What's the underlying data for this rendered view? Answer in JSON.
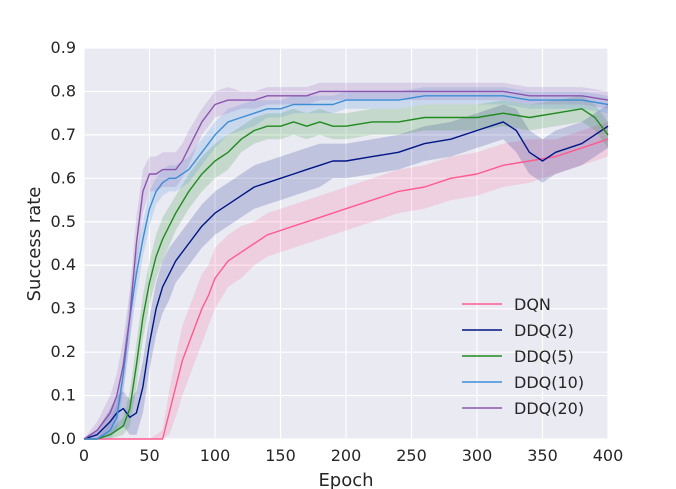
{
  "chart_data": {
    "type": "line",
    "xlabel": "Epoch",
    "ylabel": "Success rate",
    "xlim": [
      0,
      400
    ],
    "ylim": [
      0.0,
      0.9
    ],
    "x_ticks": [
      "0",
      "50",
      "100",
      "150",
      "200",
      "250",
      "300",
      "350",
      "400"
    ],
    "y_ticks": [
      "0.0",
      "0.1",
      "0.2",
      "0.3",
      "0.4",
      "0.5",
      "0.6",
      "0.7",
      "0.8",
      "0.9"
    ],
    "grid": true,
    "background": "#eaeaf2",
    "legend_position": "lower-right",
    "series": [
      {
        "name": "DQN",
        "color": "#ff5a8f",
        "x": [
          0,
          10,
          20,
          30,
          40,
          50,
          55,
          60,
          65,
          70,
          75,
          80,
          85,
          90,
          95,
          100,
          110,
          120,
          130,
          140,
          150,
          160,
          170,
          180,
          190,
          200,
          220,
          240,
          260,
          280,
          300,
          320,
          340,
          360,
          380,
          400
        ],
        "y": [
          0.0,
          0.0,
          0.0,
          0.0,
          0.0,
          0.0,
          0.0,
          0.0,
          0.06,
          0.12,
          0.18,
          0.22,
          0.26,
          0.3,
          0.33,
          0.37,
          0.41,
          0.43,
          0.45,
          0.47,
          0.48,
          0.49,
          0.5,
          0.51,
          0.52,
          0.53,
          0.55,
          0.57,
          0.58,
          0.6,
          0.61,
          0.63,
          0.64,
          0.65,
          0.67,
          0.69
        ],
        "band": [
          0,
          0,
          0,
          0,
          0,
          0,
          0.01,
          0.02,
          0.05,
          0.07,
          0.08,
          0.08,
          0.08,
          0.08,
          0.07,
          0.07,
          0.06,
          0.06,
          0.05,
          0.05,
          0.05,
          0.05,
          0.05,
          0.05,
          0.05,
          0.05,
          0.05,
          0.05,
          0.05,
          0.05,
          0.05,
          0.05,
          0.05,
          0.04,
          0.04,
          0.04
        ]
      },
      {
        "name": "DDQ(2)",
        "color": "#001586",
        "x": [
          0,
          10,
          20,
          25,
          30,
          35,
          40,
          45,
          50,
          55,
          60,
          65,
          70,
          80,
          90,
          100,
          110,
          120,
          130,
          140,
          150,
          160,
          170,
          180,
          190,
          200,
          220,
          240,
          260,
          280,
          300,
          320,
          330,
          340,
          350,
          360,
          380,
          400
        ],
        "y": [
          0.0,
          0.01,
          0.04,
          0.06,
          0.07,
          0.05,
          0.06,
          0.12,
          0.22,
          0.3,
          0.35,
          0.38,
          0.41,
          0.45,
          0.49,
          0.52,
          0.54,
          0.56,
          0.58,
          0.59,
          0.6,
          0.61,
          0.62,
          0.63,
          0.64,
          0.64,
          0.65,
          0.66,
          0.68,
          0.69,
          0.71,
          0.73,
          0.71,
          0.66,
          0.64,
          0.66,
          0.68,
          0.72
        ],
        "band": [
          0,
          0.01,
          0.03,
          0.04,
          0.04,
          0.04,
          0.05,
          0.06,
          0.06,
          0.06,
          0.06,
          0.06,
          0.05,
          0.05,
          0.05,
          0.05,
          0.05,
          0.05,
          0.05,
          0.05,
          0.05,
          0.05,
          0.05,
          0.05,
          0.04,
          0.04,
          0.04,
          0.04,
          0.04,
          0.04,
          0.04,
          0.04,
          0.05,
          0.05,
          0.05,
          0.05,
          0.05,
          0.05
        ]
      },
      {
        "name": "DDQ(5)",
        "color": "#1f8b1f",
        "x": [
          0,
          10,
          20,
          30,
          35,
          40,
          45,
          50,
          55,
          60,
          70,
          80,
          90,
          100,
          110,
          120,
          130,
          140,
          150,
          160,
          170,
          180,
          190,
          200,
          220,
          240,
          260,
          280,
          300,
          320,
          340,
          360,
          380,
          390,
          400
        ],
        "y": [
          0.0,
          0.0,
          0.01,
          0.03,
          0.07,
          0.17,
          0.28,
          0.36,
          0.42,
          0.46,
          0.52,
          0.57,
          0.61,
          0.64,
          0.66,
          0.69,
          0.71,
          0.72,
          0.72,
          0.73,
          0.72,
          0.73,
          0.72,
          0.72,
          0.73,
          0.73,
          0.74,
          0.74,
          0.74,
          0.75,
          0.74,
          0.75,
          0.76,
          0.74,
          0.7
        ],
        "band": [
          0,
          0,
          0.01,
          0.02,
          0.04,
          0.05,
          0.05,
          0.05,
          0.05,
          0.05,
          0.04,
          0.04,
          0.04,
          0.04,
          0.04,
          0.03,
          0.03,
          0.03,
          0.03,
          0.03,
          0.03,
          0.03,
          0.03,
          0.03,
          0.03,
          0.03,
          0.03,
          0.03,
          0.03,
          0.03,
          0.03,
          0.03,
          0.03,
          0.03,
          0.03
        ]
      },
      {
        "name": "DDQ(10)",
        "color": "#3c8dd6",
        "x": [
          0,
          10,
          20,
          25,
          30,
          35,
          40,
          45,
          50,
          55,
          60,
          65,
          70,
          80,
          90,
          100,
          110,
          120,
          130,
          140,
          150,
          160,
          170,
          180,
          190,
          200,
          220,
          240,
          260,
          280,
          300,
          320,
          340,
          360,
          380,
          400
        ],
        "y": [
          0.0,
          0.0,
          0.02,
          0.05,
          0.15,
          0.28,
          0.38,
          0.46,
          0.53,
          0.57,
          0.59,
          0.6,
          0.6,
          0.62,
          0.66,
          0.7,
          0.73,
          0.74,
          0.75,
          0.76,
          0.76,
          0.77,
          0.77,
          0.77,
          0.77,
          0.78,
          0.78,
          0.78,
          0.79,
          0.79,
          0.79,
          0.79,
          0.78,
          0.78,
          0.78,
          0.77
        ],
        "band": [
          0,
          0,
          0.02,
          0.03,
          0.04,
          0.05,
          0.05,
          0.04,
          0.04,
          0.03,
          0.03,
          0.03,
          0.03,
          0.03,
          0.03,
          0.03,
          0.03,
          0.03,
          0.03,
          0.02,
          0.02,
          0.02,
          0.02,
          0.02,
          0.02,
          0.02,
          0.02,
          0.02,
          0.02,
          0.02,
          0.02,
          0.02,
          0.02,
          0.02,
          0.02,
          0.02
        ]
      },
      {
        "name": "DDQ(20)",
        "color": "#8b54b0",
        "x": [
          0,
          10,
          15,
          20,
          25,
          30,
          35,
          40,
          45,
          50,
          55,
          60,
          65,
          70,
          75,
          80,
          90,
          100,
          110,
          120,
          130,
          140,
          150,
          160,
          170,
          180,
          190,
          200,
          220,
          240,
          260,
          280,
          300,
          320,
          340,
          360,
          380,
          400
        ],
        "y": [
          0.0,
          0.02,
          0.04,
          0.06,
          0.1,
          0.17,
          0.28,
          0.45,
          0.57,
          0.61,
          0.61,
          0.62,
          0.62,
          0.62,
          0.64,
          0.67,
          0.73,
          0.77,
          0.78,
          0.78,
          0.78,
          0.79,
          0.79,
          0.79,
          0.79,
          0.8,
          0.8,
          0.8,
          0.8,
          0.8,
          0.8,
          0.8,
          0.8,
          0.8,
          0.79,
          0.79,
          0.79,
          0.78
        ],
        "band": [
          0,
          0.02,
          0.03,
          0.04,
          0.05,
          0.06,
          0.06,
          0.06,
          0.05,
          0.04,
          0.04,
          0.04,
          0.04,
          0.04,
          0.04,
          0.04,
          0.03,
          0.03,
          0.03,
          0.02,
          0.02,
          0.02,
          0.02,
          0.02,
          0.02,
          0.02,
          0.02,
          0.02,
          0.02,
          0.02,
          0.02,
          0.02,
          0.02,
          0.02,
          0.02,
          0.02,
          0.02,
          0.02
        ]
      }
    ]
  }
}
